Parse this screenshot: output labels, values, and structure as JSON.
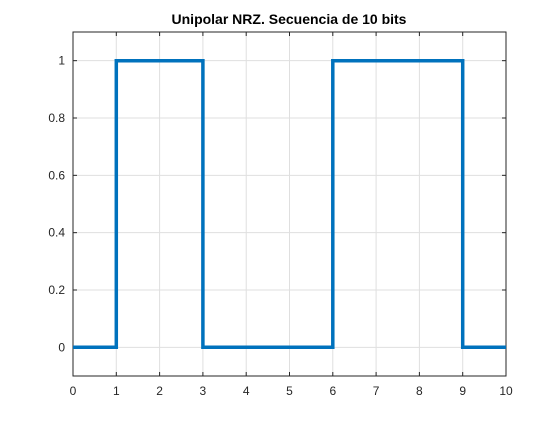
{
  "chart_data": {
    "type": "line",
    "title": "Unipolar NRZ. Secuencia de 10 bits",
    "xlabel": "",
    "ylabel": "",
    "xlim": [
      0,
      10
    ],
    "ylim": [
      -0.1,
      1.1
    ],
    "xticks": [
      "0",
      "1",
      "2",
      "3",
      "4",
      "5",
      "6",
      "7",
      "8",
      "9",
      "10"
    ],
    "yticks": [
      "0",
      "0.2",
      "0.4",
      "0.6",
      "0.8",
      "1"
    ],
    "grid": true,
    "series": [
      {
        "color": "#0072BD",
        "x": [
          0,
          1,
          1,
          3,
          3,
          6,
          6,
          9,
          9,
          10
        ],
        "y": [
          0,
          0,
          1,
          1,
          0,
          0,
          1,
          1,
          0,
          0
        ]
      }
    ]
  }
}
